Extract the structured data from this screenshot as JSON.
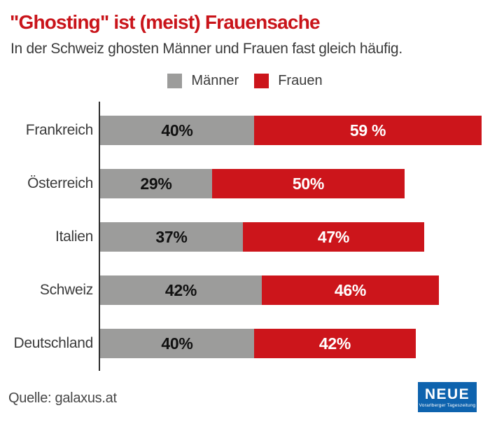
{
  "header": {
    "title": "\"Ghosting\" ist (meist) Frauensache",
    "subtitle": "In der Schweiz ghosten Männer und Frauen fast gleich häufig."
  },
  "legend": {
    "items": [
      {
        "label": "Männer",
        "color": "#9c9c9b"
      },
      {
        "label": "Frauen",
        "color": "#cc151b"
      }
    ]
  },
  "chart_data": {
    "type": "bar",
    "orientation": "horizontal",
    "stacked": true,
    "title": "\"Ghosting\" ist (meist) Frauensache",
    "subtitle": "In der Schweiz ghosten Männer und Frauen fast gleich häufig.",
    "categories": [
      "Frankreich",
      "Österreich",
      "Italien",
      "Schweiz",
      "Deutschland"
    ],
    "series": [
      {
        "name": "Männer",
        "color": "#9c9c9b",
        "label_color": "#111111",
        "values": [
          40,
          29,
          37,
          42,
          40
        ],
        "labels": [
          "40%",
          "29%",
          "37%",
          "42%",
          "40%"
        ]
      },
      {
        "name": "Frauen",
        "color": "#cc151b",
        "label_color": "#ffffff",
        "values": [
          59,
          50,
          47,
          46,
          42
        ],
        "labels": [
          "59 %",
          "50%",
          "47%",
          "46%",
          "42%"
        ]
      }
    ],
    "unit": "%",
    "xlim": [
      0,
      100
    ],
    "grid": false,
    "legend_position": "top-center",
    "value_labels": "inside-center"
  },
  "colors": {
    "accent_red": "#c9141a",
    "bar_gray": "#9c9c9b",
    "bar_red": "#cc151b",
    "text_dark": "#3b3b3b",
    "logo_blue": "#0e63ae"
  },
  "footer": {
    "source": "Quelle: galaxus.at",
    "logo": {
      "name": "NEUE",
      "tagline": "Vorarlberger Tageszeitung"
    }
  }
}
